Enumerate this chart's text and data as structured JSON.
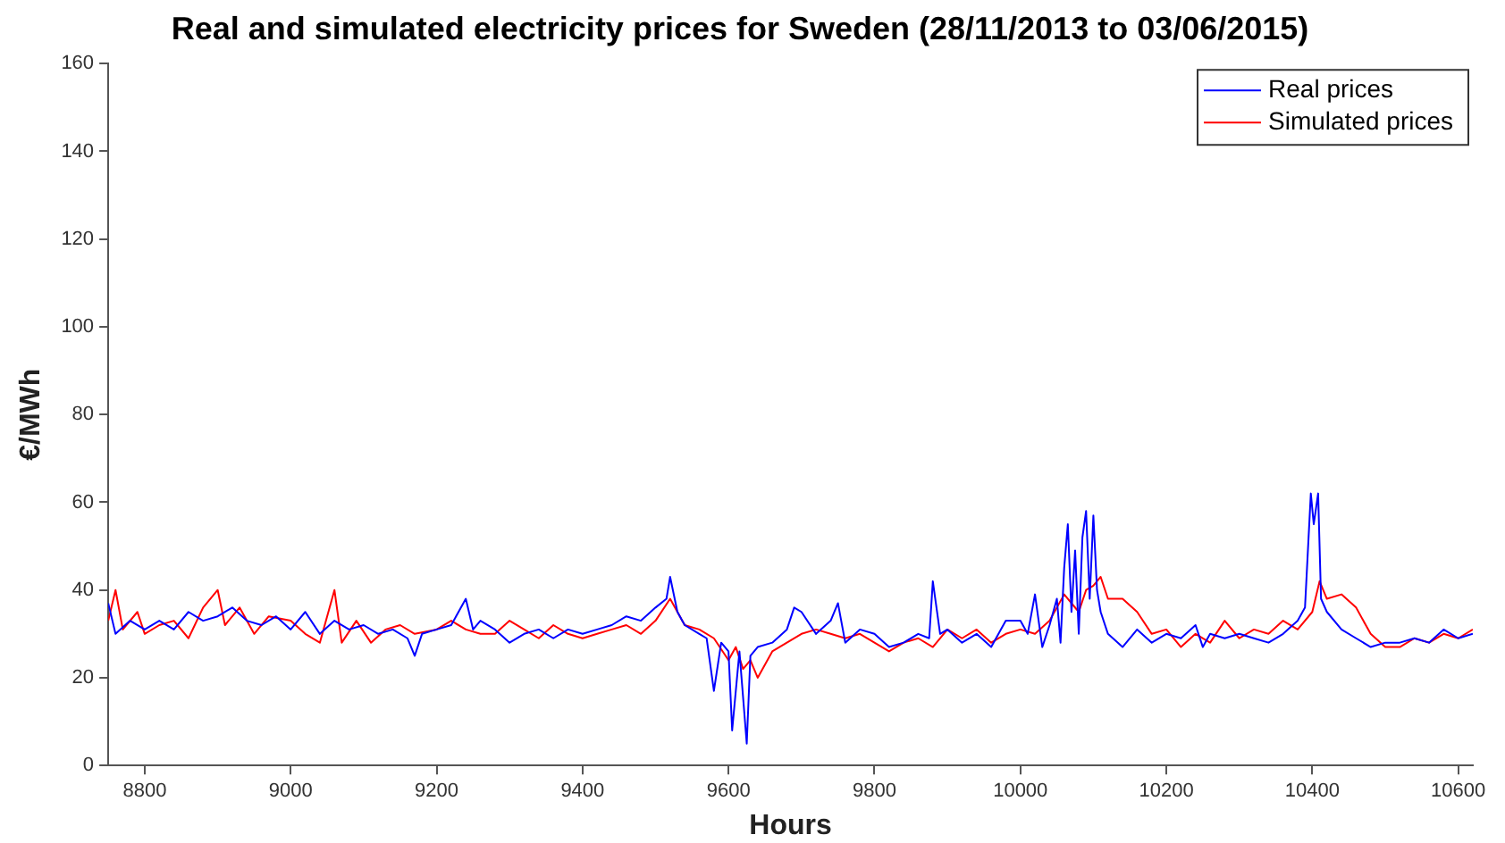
{
  "chart_data": {
    "type": "line",
    "title": "Real and simulated electricity prices for Sweden (28/11/2013 to 03/06/2015)",
    "xlabel": "Hours",
    "ylabel": "€/MWh",
    "xlim": [
      8750,
      10620
    ],
    "xticks": [
      8800,
      9000,
      9200,
      9400,
      9600,
      9800,
      10000,
      10200,
      10400,
      10600
    ],
    "ylim": [
      0,
      160
    ],
    "yticks": [
      0,
      20,
      40,
      60,
      80,
      100,
      120,
      140,
      160
    ],
    "grid": false,
    "legend": "top right",
    "marker": "none",
    "line_style": "solid",
    "series": [
      {
        "name": "Real prices",
        "color": "#0000ff",
        "x": [
          8750,
          8760,
          8780,
          8800,
          8820,
          8840,
          8860,
          8880,
          8900,
          8920,
          8940,
          8960,
          8980,
          9000,
          9020,
          9040,
          9060,
          9080,
          9100,
          9120,
          9140,
          9160,
          9170,
          9180,
          9200,
          9220,
          9240,
          9250,
          9260,
          9280,
          9300,
          9320,
          9340,
          9360,
          9380,
          9400,
          9420,
          9440,
          9460,
          9480,
          9500,
          9515,
          9520,
          9530,
          9540,
          9560,
          9570,
          9580,
          9590,
          9600,
          9605,
          9615,
          9625,
          9630,
          9640,
          9660,
          9680,
          9690,
          9700,
          9720,
          9740,
          9750,
          9760,
          9780,
          9800,
          9820,
          9840,
          9860,
          9875,
          9880,
          9890,
          9900,
          9920,
          9940,
          9960,
          9980,
          10000,
          10010,
          10020,
          10030,
          10040,
          10050,
          10055,
          10060,
          10065,
          10070,
          10075,
          10080,
          10085,
          10090,
          10095,
          10100,
          10105,
          10110,
          10120,
          10140,
          10160,
          10180,
          10200,
          10220,
          10240,
          10250,
          10260,
          10280,
          10300,
          10320,
          10340,
          10360,
          10380,
          10390,
          10398,
          10402,
          10408,
          10412,
          10420,
          10440,
          10460,
          10480,
          10500,
          10520,
          10540,
          10560,
          10580,
          10600,
          10620
        ],
        "values": [
          37,
          30,
          33,
          31,
          33,
          31,
          35,
          33,
          34,
          36,
          33,
          32,
          34,
          31,
          35,
          30,
          33,
          31,
          32,
          30,
          31,
          29,
          25,
          30,
          31,
          32,
          38,
          31,
          33,
          31,
          28,
          30,
          31,
          29,
          31,
          30,
          31,
          32,
          34,
          33,
          36,
          38,
          43,
          35,
          32,
          30,
          29,
          17,
          28,
          26,
          8,
          26,
          5,
          25,
          27,
          28,
          31,
          36,
          35,
          30,
          33,
          37,
          28,
          31,
          30,
          27,
          28,
          30,
          29,
          42,
          30,
          31,
          28,
          30,
          27,
          33,
          33,
          30,
          39,
          27,
          32,
          38,
          28,
          45,
          55,
          35,
          49,
          30,
          52,
          58,
          38,
          57,
          40,
          35,
          30,
          27,
          31,
          28,
          30,
          29,
          32,
          27,
          30,
          29,
          30,
          29,
          28,
          30,
          33,
          36,
          62,
          55,
          62,
          38,
          35,
          31,
          29,
          27,
          28,
          28,
          29,
          28,
          31,
          29,
          30
        ]
      },
      {
        "name": "Simulated prices",
        "color": "#ff0000",
        "x": [
          8750,
          8760,
          8770,
          8790,
          8800,
          8820,
          8840,
          8860,
          8880,
          8900,
          8910,
          8930,
          8950,
          8970,
          9000,
          9020,
          9040,
          9060,
          9070,
          9090,
          9110,
          9130,
          9150,
          9170,
          9200,
          9220,
          9240,
          9260,
          9280,
          9300,
          9320,
          9340,
          9360,
          9380,
          9400,
          9420,
          9440,
          9460,
          9480,
          9500,
          9520,
          9530,
          9540,
          9560,
          9580,
          9600,
          9610,
          9620,
          9630,
          9640,
          9650,
          9660,
          9680,
          9700,
          9720,
          9740,
          9760,
          9780,
          9800,
          9820,
          9840,
          9860,
          9880,
          9900,
          9920,
          9940,
          9960,
          9980,
          10000,
          10020,
          10040,
          10060,
          10080,
          10090,
          10100,
          10110,
          10120,
          10140,
          10160,
          10180,
          10200,
          10220,
          10240,
          10260,
          10280,
          10300,
          10320,
          10340,
          10360,
          10380,
          10400,
          10410,
          10420,
          10440,
          10460,
          10480,
          10500,
          10520,
          10540,
          10560,
          10580,
          10600,
          10620
        ],
        "values": [
          33,
          40,
          31,
          35,
          30,
          32,
          33,
          29,
          36,
          40,
          32,
          36,
          30,
          34,
          33,
          30,
          28,
          40,
          28,
          33,
          28,
          31,
          32,
          30,
          31,
          33,
          31,
          30,
          30,
          33,
          31,
          29,
          32,
          30,
          29,
          30,
          31,
          32,
          30,
          33,
          38,
          35,
          32,
          31,
          29,
          24,
          27,
          22,
          24,
          20,
          23,
          26,
          28,
          30,
          31,
          30,
          29,
          30,
          28,
          26,
          28,
          29,
          27,
          31,
          29,
          31,
          28,
          30,
          31,
          30,
          33,
          39,
          35,
          40,
          41,
          43,
          38,
          38,
          35,
          30,
          31,
          27,
          30,
          28,
          33,
          29,
          31,
          30,
          33,
          31,
          35,
          42,
          38,
          39,
          36,
          30,
          27,
          27,
          29,
          28,
          30,
          29,
          31
        ]
      }
    ]
  }
}
